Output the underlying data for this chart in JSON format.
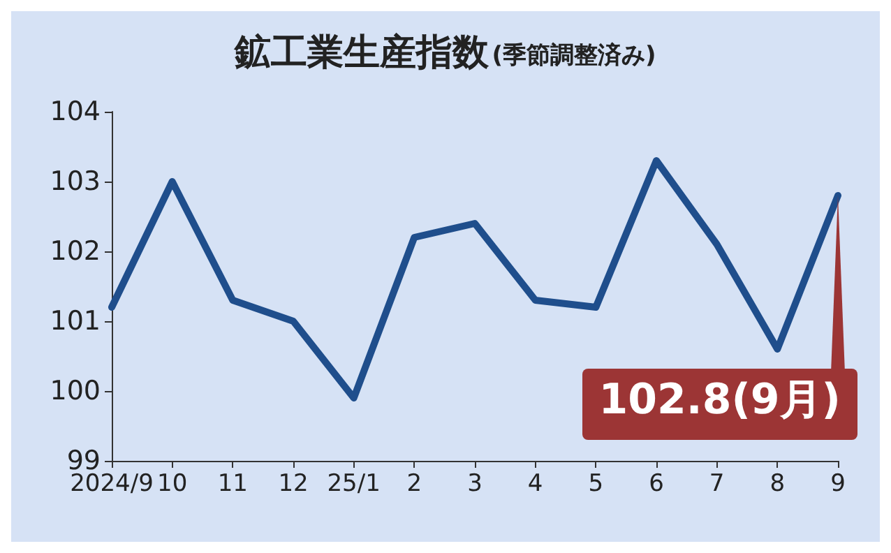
{
  "chart_data": {
    "type": "line",
    "title": "鉱工業生産指数",
    "subtitle": "(季節調整済み)",
    "categories": [
      "2024/9",
      "10",
      "11",
      "12",
      "25/1",
      "2",
      "3",
      "4",
      "5",
      "6",
      "7",
      "8",
      "9"
    ],
    "series": [
      {
        "color": "#1f4e8c",
        "values": [
          101.2,
          103.0,
          101.3,
          101.0,
          99.9,
          102.2,
          102.4,
          101.3,
          101.2,
          103.3,
          102.1,
          100.6,
          102.8
        ]
      }
    ],
    "ylim": [
      99,
      104
    ],
    "yticks": [
      99,
      100,
      101,
      102,
      103,
      104
    ],
    "grid": false,
    "marker": "none",
    "line_style": "solid",
    "annotations": [
      {
        "text": "102.8(9月)",
        "x": "9",
        "y": 102.8
      }
    ]
  }
}
